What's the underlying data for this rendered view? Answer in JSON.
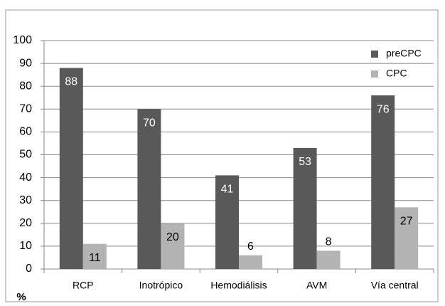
{
  "chart_data": {
    "type": "bar",
    "categories": [
      "RCP",
      "Inotrópico",
      "Hemodiálisis",
      "AVM",
      "Vía central"
    ],
    "series": [
      {
        "name": "preCPC",
        "color": "#595959",
        "values": [
          88,
          70,
          41,
          53,
          76
        ]
      },
      {
        "name": "CPC",
        "color": "#b3b3b3",
        "values": [
          11,
          20,
          6,
          8,
          27
        ]
      }
    ],
    "ylabel": "%",
    "ylim": [
      0,
      100
    ],
    "yticks": [
      0,
      10,
      20,
      30,
      40,
      50,
      60,
      70,
      80,
      90,
      100
    ],
    "grid": true,
    "legend": "upper right",
    "data_labels": true
  }
}
